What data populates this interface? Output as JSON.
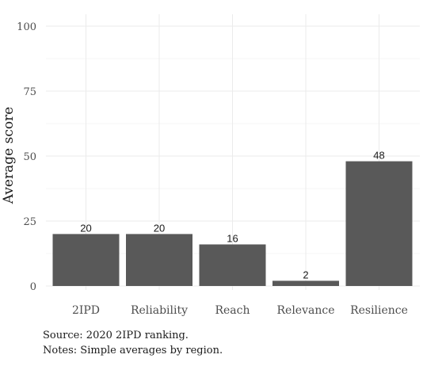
{
  "chart_data": {
    "type": "bar",
    "categories": [
      "2IPD",
      "Reliability",
      "Reach",
      "Relevance",
      "Resilience"
    ],
    "values": [
      20,
      20,
      16,
      2,
      48
    ],
    "data_labels": [
      "20",
      "20",
      "16",
      "2",
      "48"
    ],
    "title": "",
    "xlabel": "",
    "ylabel": "Average score",
    "ylim": [
      0,
      100
    ],
    "yticks": [
      "0",
      "25",
      "50",
      "75",
      "100"
    ],
    "grid": true,
    "legend": "none",
    "bar_color": "#595959"
  },
  "footnotes": {
    "source": "Source: 2020 2IPD ranking.",
    "notes": "Notes: Simple averages by region."
  }
}
